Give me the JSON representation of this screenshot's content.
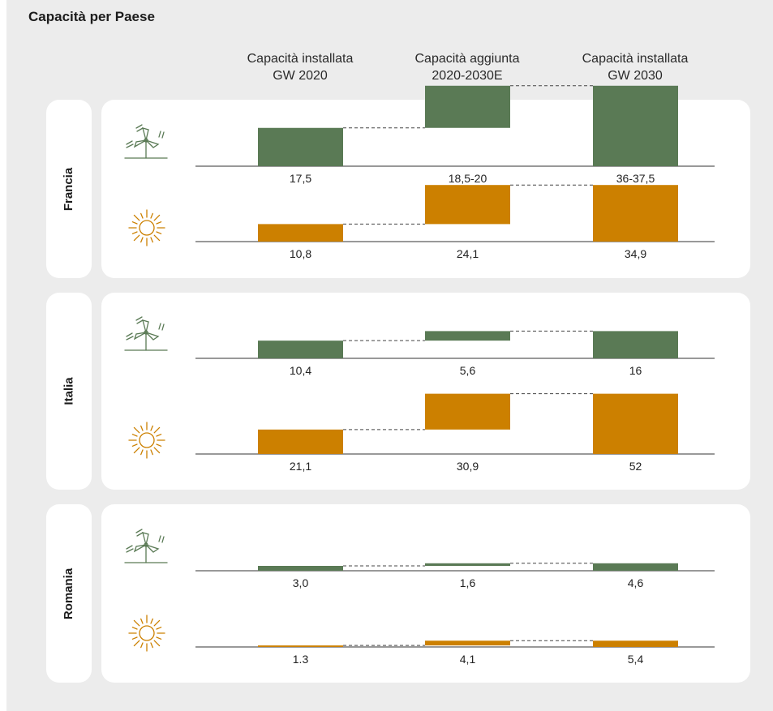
{
  "title": "Capacità per Paese",
  "columns": [
    {
      "line1": "Capacità installata",
      "line2": "GW 2020"
    },
    {
      "line1": "Capacità aggiunta",
      "line2": "2020-2030E"
    },
    {
      "line1": "Capacità installata",
      "line2": "GW 2030"
    }
  ],
  "colors": {
    "wind": "#5a7a55",
    "solar": "#cc8000"
  },
  "icons": {
    "wind": "wind-turbine-icon",
    "solar": "sun-icon"
  },
  "chart_data": {
    "type": "bar",
    "variant": "waterfall",
    "countries": [
      {
        "name": "Francia",
        "series": [
          {
            "type": "wind",
            "values": [
              17.5,
              19.25,
              36.75
            ],
            "labels": [
              "17,5",
              "18,5-20",
              "36-37,5"
            ]
          },
          {
            "type": "solar",
            "values": [
              10.8,
              24.1,
              34.9
            ],
            "labels": [
              "10,8",
              "24,1",
              "34,9"
            ]
          }
        ]
      },
      {
        "name": "Italia",
        "series": [
          {
            "type": "wind",
            "values": [
              10.4,
              5.6,
              16
            ],
            "labels": [
              "10,4",
              "5,6",
              "16"
            ]
          },
          {
            "type": "solar",
            "values": [
              21.1,
              30.9,
              52
            ],
            "labels": [
              "21,1",
              "30,9",
              "52"
            ]
          }
        ]
      },
      {
        "name": "Romania",
        "series": [
          {
            "type": "wind",
            "values": [
              3.0,
              1.6,
              4.6
            ],
            "labels": [
              "3,0",
              "1,6",
              "4,6"
            ]
          },
          {
            "type": "solar",
            "values": [
              1.3,
              4.1,
              5.4
            ],
            "labels": [
              "1.3",
              "4,1",
              "5,4"
            ]
          }
        ]
      }
    ]
  }
}
